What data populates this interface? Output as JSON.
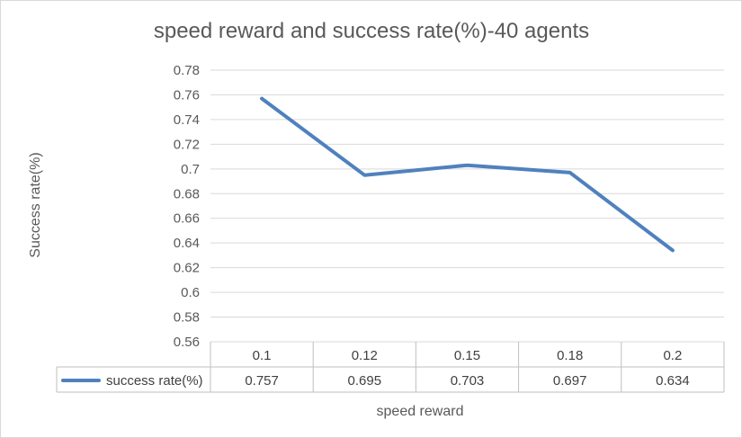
{
  "chart_data": {
    "type": "line",
    "title": "speed reward and success rate(%)-40 agents",
    "xlabel": "speed reward",
    "ylabel": "Success rate(%)",
    "categories": [
      "0.1",
      "0.12",
      "0.15",
      "0.18",
      "0.2"
    ],
    "series": [
      {
        "name": "success rate(%)",
        "values": [
          0.757,
          0.695,
          0.703,
          0.697,
          0.634
        ],
        "value_labels": [
          "0.757",
          "0.695",
          "0.703",
          "0.697",
          "0.634"
        ],
        "color": "#4f81bd"
      }
    ],
    "ylim": [
      0.56,
      0.78
    ],
    "yticks": [
      "0.78",
      "0.76",
      "0.74",
      "0.72",
      "0.7",
      "0.68",
      "0.66",
      "0.64",
      "0.62",
      "0.6",
      "0.58",
      "0.56"
    ],
    "grid": true,
    "legend": "data-table"
  }
}
